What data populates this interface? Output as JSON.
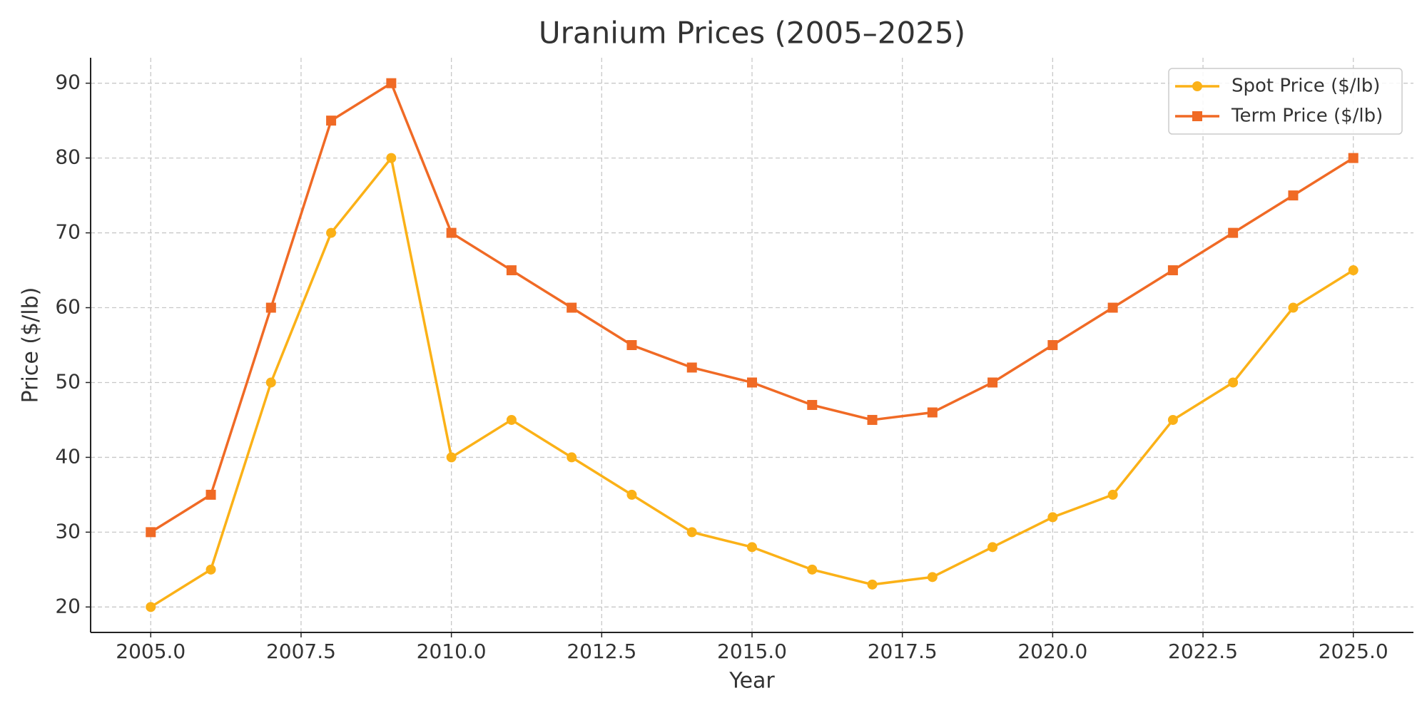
{
  "chart_data": {
    "type": "line",
    "title": "Uranium Prices (2005–2025)",
    "xlabel": "Year",
    "ylabel": "Price ($/lb)",
    "x": [
      2005,
      2006,
      2007,
      2008,
      2009,
      2010,
      2011,
      2012,
      2013,
      2014,
      2015,
      2016,
      2017,
      2018,
      2019,
      2020,
      2021,
      2022,
      2023,
      2024,
      2025
    ],
    "series": [
      {
        "name": "Spot Price ($/lb)",
        "color": "#fbb117",
        "marker": "circle",
        "values": [
          20,
          25,
          50,
          70,
          80,
          40,
          45,
          40,
          35,
          30,
          28,
          25,
          23,
          24,
          28,
          32,
          35,
          45,
          50,
          60,
          65
        ]
      },
      {
        "name": "Term Price ($/lb)",
        "color": "#f06a25",
        "marker": "square",
        "values": [
          30,
          35,
          60,
          85,
          90,
          70,
          65,
          60,
          55,
          52,
          50,
          47,
          45,
          46,
          50,
          55,
          60,
          65,
          70,
          75,
          80
        ]
      }
    ],
    "xlim": [
      2004,
      2026
    ],
    "ylim": [
      16.6,
      93.4
    ],
    "xticks": [
      {
        "value": 2005,
        "label": "2005.0"
      },
      {
        "value": 2007.5,
        "label": "2007.5"
      },
      {
        "value": 2010,
        "label": "2010.0"
      },
      {
        "value": 2012.5,
        "label": "2012.5"
      },
      {
        "value": 2015,
        "label": "2015.0"
      },
      {
        "value": 2017.5,
        "label": "2017.5"
      },
      {
        "value": 2020,
        "label": "2020.0"
      },
      {
        "value": 2022.5,
        "label": "2022.5"
      },
      {
        "value": 2025,
        "label": "2025.0"
      }
    ],
    "yticks": [
      20,
      30,
      40,
      50,
      60,
      70,
      80,
      90
    ],
    "grid": true,
    "legend": "upper right"
  }
}
